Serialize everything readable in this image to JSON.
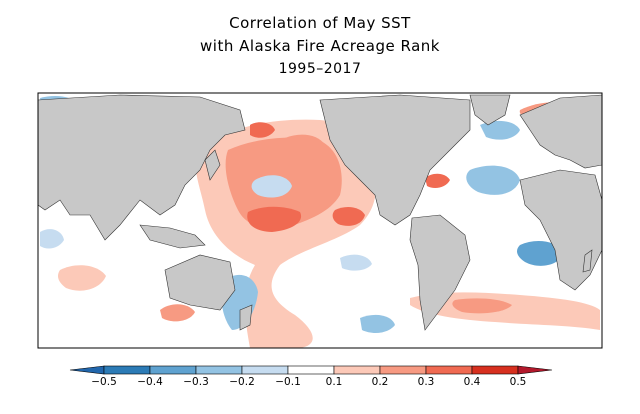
{
  "title": {
    "line1": "Correlation of May SST",
    "line2": "with Alaska Fire Acreage Rank",
    "line3": "1995–2017"
  },
  "colorbar": {
    "ticks": [
      "−0.5",
      "−0.4",
      "−0.3",
      "−0.2",
      "−0.1",
      "0.1",
      "0.2",
      "0.3",
      "0.4",
      "0.5"
    ],
    "colors": [
      "#2c7bb6",
      "#5fa2d0",
      "#93c3e3",
      "#c6dcf0",
      "#ffffff",
      "#fcc9b8",
      "#f79a82",
      "#f06a52",
      "#d7301f"
    ],
    "under_color": "#2166ac",
    "over_color": "#b2182b"
  },
  "map": {
    "land_color": "#c8c8c8",
    "ocean_color": "#ffffff"
  }
}
